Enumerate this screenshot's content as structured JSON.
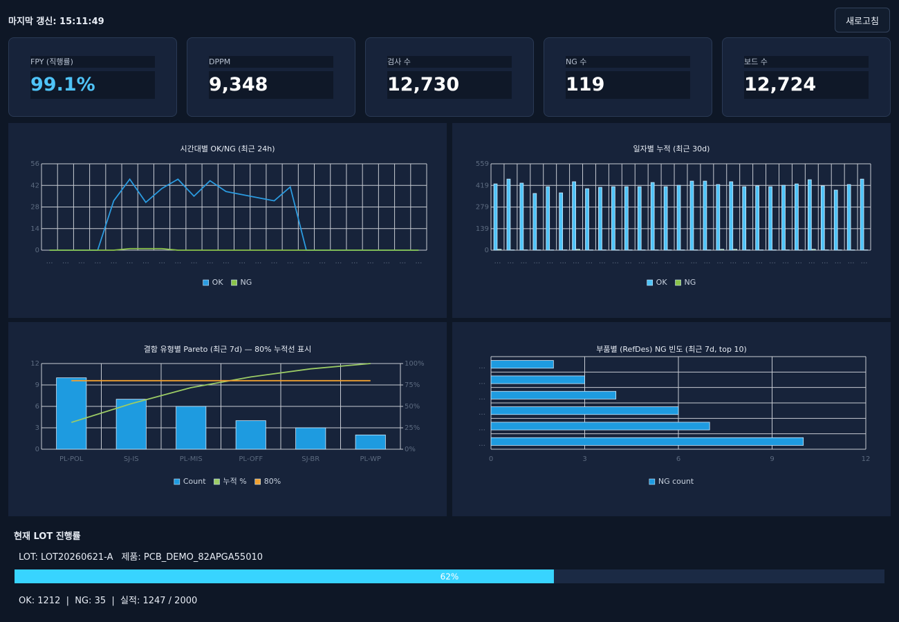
{
  "header": {
    "last_update": "마지막 갱신: 15:11:49",
    "refresh": "새로고침"
  },
  "kpis": [
    {
      "label": "FPY (직행률)",
      "value": "99.1%"
    },
    {
      "label": "DPPM",
      "value": "9,348"
    },
    {
      "label": "검사 수",
      "value": "12,730"
    },
    {
      "label": "NG 수",
      "value": "119"
    },
    {
      "label": "보드 수",
      "value": "12,724"
    }
  ],
  "chart_data": [
    {
      "type": "line",
      "title": "시간대별 OK/NG (최근 24h)",
      "categories": [
        "…",
        "…",
        "…",
        "…",
        "…",
        "…",
        "…",
        "…",
        "…",
        "…",
        "…",
        "…",
        "…",
        "…",
        "…",
        "…",
        "…",
        "…",
        "…",
        "…",
        "…",
        "…",
        "…",
        "…"
      ],
      "series": [
        {
          "name": "OK",
          "color": "#2b9be0",
          "values": [
            0,
            0,
            0,
            0,
            32,
            46,
            31,
            40,
            46,
            35,
            45,
            38,
            36,
            34,
            32,
            41,
            0,
            0,
            0,
            0,
            0,
            0,
            0,
            0
          ]
        },
        {
          "name": "NG",
          "color": "#8bc34a",
          "values": [
            0,
            0,
            0,
            0,
            0,
            1,
            1,
            1,
            0,
            0,
            0,
            0,
            0,
            0,
            0,
            0,
            0,
            0,
            0,
            0,
            0,
            0,
            0,
            0
          ]
        }
      ],
      "ylim": [
        0,
        56
      ],
      "yticks": [
        0,
        14,
        28,
        42,
        56
      ],
      "grid": true
    },
    {
      "type": "bar",
      "title": "일자별 누적 (최근 30d)",
      "categories": [
        "…",
        "…",
        "…",
        "…",
        "…",
        "…",
        "…",
        "…",
        "…",
        "…",
        "…",
        "…",
        "…",
        "…",
        "…",
        "…",
        "…",
        "…",
        "…",
        "…",
        "…",
        "…",
        "…",
        "…",
        "…",
        "…",
        "…",
        "…",
        "…"
      ],
      "series": [
        {
          "name": "OK",
          "color": "#4fc3f7",
          "values": [
            429,
            460,
            434,
            367,
            411,
            371,
            443,
            398,
            407,
            411,
            411,
            411,
            438,
            411,
            420,
            447,
            447,
            425,
            443,
            411,
            416,
            411,
            420,
            429,
            456,
            416,
            389,
            425,
            460
          ]
        },
        {
          "name": "NG",
          "color": "#8bc34a",
          "values": [
            6,
            2,
            2,
            2,
            2,
            2,
            6,
            2,
            2,
            2,
            2,
            2,
            2,
            2,
            2,
            2,
            2,
            6,
            6,
            2,
            2,
            2,
            2,
            2,
            6,
            2,
            2,
            2,
            2
          ]
        }
      ],
      "ylim": [
        0,
        559
      ],
      "yticks": [
        0,
        139,
        279,
        419,
        559
      ],
      "grid": true
    },
    {
      "type": "pareto",
      "title": "결함 유형별 Pareto (최근 7d) — 80% 누적선 표시",
      "categories": [
        "PL-POL",
        "SJ-IS",
        "PL-MIS",
        "PL-OFF",
        "SJ-BR",
        "PL-WP"
      ],
      "series": [
        {
          "name": "Count",
          "color": "#1e9be0",
          "values": [
            10,
            7,
            6,
            4,
            3,
            2
          ]
        },
        {
          "name": "누적 %",
          "color": "#9ccc65",
          "axis": "y2",
          "values": [
            31.3,
            53.1,
            71.9,
            84.4,
            93.8,
            100
          ]
        },
        {
          "name": "80%",
          "color": "#f0a030",
          "axis": "y2",
          "values": [
            80,
            80,
            80,
            80,
            80,
            80
          ]
        }
      ],
      "ylim": [
        0,
        12
      ],
      "yticks": [
        0,
        3,
        6,
        9,
        12
      ],
      "y2lim": [
        0,
        100
      ],
      "y2ticks": [
        {
          "value": 0,
          "label": "0%"
        },
        {
          "value": 25,
          "label": "25%"
        },
        {
          "value": 50,
          "label": "50%"
        },
        {
          "value": 75,
          "label": "75%"
        },
        {
          "value": 100,
          "label": "100%"
        }
      ],
      "grid": true
    },
    {
      "type": "barh",
      "title": "부품별 (RefDes) NG 빈도 (최근 7d, top 10)",
      "categories": [
        "…",
        "…",
        "…",
        "…",
        "…",
        "…"
      ],
      "series": [
        {
          "name": "NG count",
          "color": "#1e9be0",
          "values": [
            2,
            3,
            4,
            6,
            7,
            10
          ]
        }
      ],
      "xlim": [
        0,
        12
      ],
      "xticks": [
        0,
        3,
        6,
        9,
        12
      ],
      "grid": true
    }
  ],
  "lot": {
    "title": "현재 LOT 진행률",
    "lot": "LOT: LOT20260621-A",
    "product": "제품: PCB_DEMO_82APGA55010",
    "progress": 62,
    "progress_label": "62%",
    "progress_range": [
      0,
      100
    ],
    "summary": "OK: 1212  |  NG: 35  |  실적: 1247 / 2000"
  }
}
